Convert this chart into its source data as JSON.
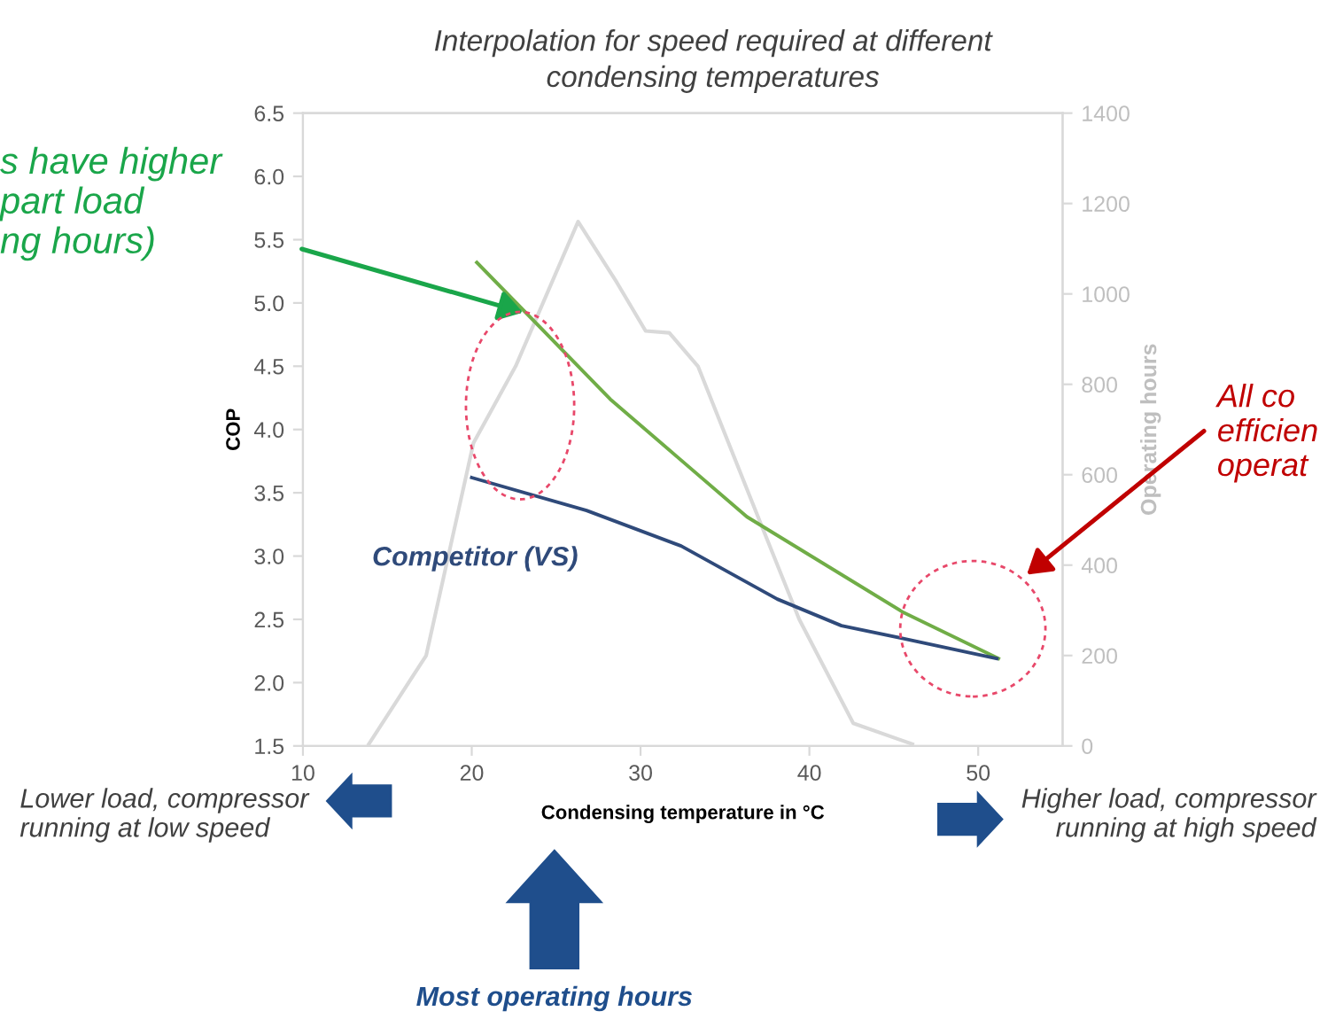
{
  "chart_data": {
    "type": "line",
    "title": "Interpolation for speed required at different\ncondensing temperatures",
    "xlabel": "Condensing temperature in °C",
    "ylabel": "COP",
    "y2label": "Operating hours",
    "xlim": [
      10,
      55
    ],
    "xticks": [
      10,
      20,
      30,
      40,
      50
    ],
    "ylim": [
      1.5,
      6.5
    ],
    "yticks": [
      {
        "value": 1.5,
        "label": "1.5"
      },
      {
        "value": 2.0,
        "label": "2.0"
      },
      {
        "value": 2.5,
        "label": "2.5"
      },
      {
        "value": 3.0,
        "label": "3.0"
      },
      {
        "value": 3.5,
        "label": "3.5"
      },
      {
        "value": 4.0,
        "label": "4.0"
      },
      {
        "value": 4.5,
        "label": "4.5"
      },
      {
        "value": 5.0,
        "label": "5.0"
      },
      {
        "value": 5.5,
        "label": "5.5"
      },
      {
        "value": 6.0,
        "label": "6.0"
      },
      {
        "value": 6.5,
        "label": "6.5"
      }
    ],
    "y2lim": [
      0,
      1400
    ],
    "y2ticks": [
      0,
      200,
      400,
      600,
      800,
      1000,
      1200,
      1400
    ],
    "grid": false,
    "legend": false,
    "marker": "none",
    "series": [
      {
        "color": "#70ad47",
        "x": [
          20.3,
          28.2,
          36.3,
          45.5,
          51.2
        ],
        "values": [
          5.32,
          4.24,
          3.31,
          2.56,
          2.19
        ]
      },
      {
        "name": "Competitor (VS)",
        "color": "#2f4a7a",
        "x": [
          20,
          26.8,
          32.4,
          38.1,
          41.9,
          45.5,
          51.1
        ],
        "values": [
          3.62,
          3.36,
          3.08,
          2.66,
          2.45,
          2.35,
          2.19
        ]
      },
      {
        "axis": "y2",
        "color": "#d9d9d9",
        "x": [
          13.9,
          17.3,
          20.1,
          22.6,
          26.3,
          28.6,
          30.3,
          31.7,
          33.4,
          36.6,
          39.4,
          42.6,
          46.1
        ],
        "values": [
          4,
          200,
          670,
          840,
          1160,
          1025,
          918,
          914,
          840,
          540,
          280,
          50,
          4
        ]
      }
    ],
    "annotations": [
      "s have higher\npart load\nng hours)",
      "All co\nefficien\noperat",
      "Lower load, compressor\nrunning at low speed",
      "Higher load, compressor\nrunning at high speed",
      "Most operating hours"
    ]
  }
}
